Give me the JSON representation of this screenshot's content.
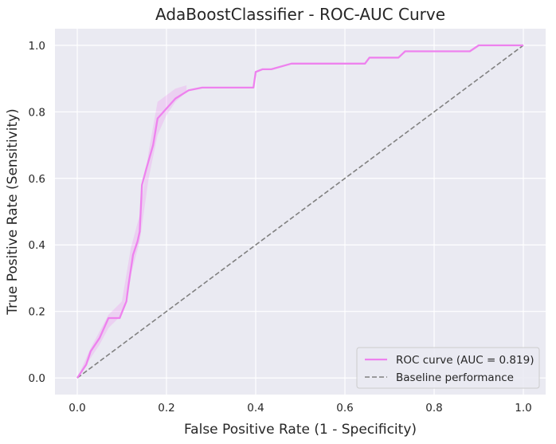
{
  "chart_data": {
    "type": "line",
    "title": "AdaBoostClassifier - ROC-AUC Curve",
    "xlabel": "False Positive Rate (1 - Specificity)",
    "ylabel": "True Positive Rate (Sensitivity)",
    "xlim": [
      -0.05,
      1.05
    ],
    "ylim": [
      -0.05,
      1.05
    ],
    "xticks": [
      0.0,
      0.2,
      0.4,
      0.6,
      0.8,
      1.0
    ],
    "yticks": [
      0.0,
      0.2,
      0.4,
      0.6,
      0.8,
      1.0
    ],
    "xtick_labels": [
      "0.0",
      "0.2",
      "0.4",
      "0.6",
      "0.8",
      "1.0"
    ],
    "ytick_labels": [
      "0.0",
      "0.2",
      "0.4",
      "0.6",
      "0.8",
      "1.0"
    ],
    "grid": true,
    "legend_position": "lower-right",
    "series": [
      {
        "name": "ROC curve (AUC = 0.819)",
        "color": "#ee82ee",
        "style": "solid",
        "x": [
          0.0,
          0.02,
          0.03,
          0.05,
          0.07,
          0.095,
          0.11,
          0.115,
          0.125,
          0.135,
          0.14,
          0.145,
          0.155,
          0.17,
          0.18,
          0.2,
          0.22,
          0.25,
          0.28,
          0.3,
          0.35,
          0.395,
          0.4,
          0.415,
          0.435,
          0.48,
          0.6,
          0.645,
          0.655,
          0.72,
          0.735,
          0.88,
          0.9,
          1.0
        ],
        "y": [
          0.0,
          0.04,
          0.08,
          0.12,
          0.18,
          0.18,
          0.23,
          0.28,
          0.37,
          0.41,
          0.44,
          0.58,
          0.63,
          0.7,
          0.78,
          0.81,
          0.84,
          0.865,
          0.873,
          0.873,
          0.873,
          0.873,
          0.92,
          0.928,
          0.928,
          0.945,
          0.945,
          0.945,
          0.963,
          0.963,
          0.982,
          0.982,
          1.0,
          1.0
        ]
      },
      {
        "name": "Baseline performance",
        "color": "#808080",
        "style": "dashed",
        "x": [
          0.0,
          1.0
        ],
        "y": [
          0.0,
          1.0
        ]
      }
    ],
    "band": {
      "color": "#ee82ee",
      "x": [
        0.0,
        0.03,
        0.05,
        0.07,
        0.1,
        0.12,
        0.14,
        0.16,
        0.18,
        0.2,
        0.22,
        0.245
      ],
      "lower": [
        0.0,
        0.06,
        0.1,
        0.15,
        0.19,
        0.31,
        0.41,
        0.6,
        0.73,
        0.79,
        0.83,
        0.86
      ],
      "upper": [
        0.0,
        0.09,
        0.14,
        0.19,
        0.23,
        0.39,
        0.49,
        0.68,
        0.83,
        0.85,
        0.87,
        0.88
      ]
    }
  }
}
